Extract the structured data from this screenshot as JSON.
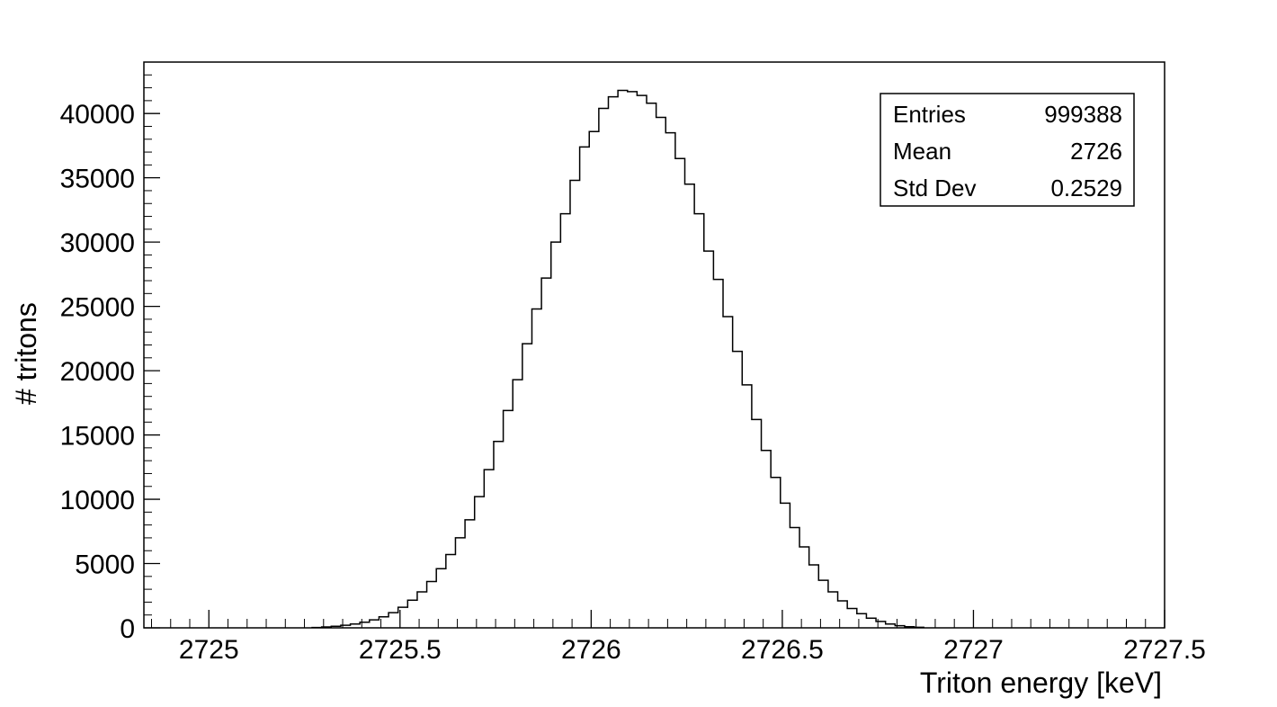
{
  "chart_data": {
    "type": "bar",
    "histogram": true,
    "xlabel": "Triton energy [keV]",
    "ylabel": "# tritons",
    "xlim": [
      2724.83,
      2727.5
    ],
    "ylim": [
      0,
      44000
    ],
    "x_ticks": [
      2725,
      2725.5,
      2726,
      2726.5,
      2727,
      2727.5
    ],
    "x_tick_labels": [
      "2725",
      "2725.5",
      "2726",
      "2726.5",
      "2727",
      "2727.5"
    ],
    "y_ticks": [
      0,
      5000,
      10000,
      15000,
      20000,
      25000,
      30000,
      35000,
      40000
    ],
    "y_tick_labels": [
      "0",
      "5000",
      "10000",
      "15000",
      "20000",
      "25000",
      "30000",
      "35000",
      "40000"
    ],
    "bin_start": 2725.27,
    "bin_width": 0.025,
    "values": [
      30,
      70,
      120,
      200,
      300,
      440,
      620,
      860,
      1180,
      1600,
      2150,
      2800,
      3600,
      4600,
      5700,
      7000,
      8400,
      10200,
      12300,
      14500,
      16900,
      19300,
      22100,
      24800,
      27200,
      30000,
      32200,
      34800,
      37400,
      38600,
      40400,
      41300,
      41800,
      41700,
      41400,
      40800,
      39700,
      38500,
      36500,
      34500,
      32200,
      29300,
      27100,
      24200,
      21500,
      18900,
      16200,
      13800,
      11700,
      9700,
      7800,
      6300,
      4900,
      3700,
      2800,
      2100,
      1500,
      1100,
      750,
      500,
      300,
      170,
      90,
      40
    ],
    "grid": false,
    "stats_box": {
      "placement": "top-right",
      "rows": [
        {
          "label": "Entries",
          "value": "999388"
        },
        {
          "label": "Mean",
          "value": "2726"
        },
        {
          "label": "Std Dev",
          "value": "0.2529"
        }
      ]
    }
  }
}
